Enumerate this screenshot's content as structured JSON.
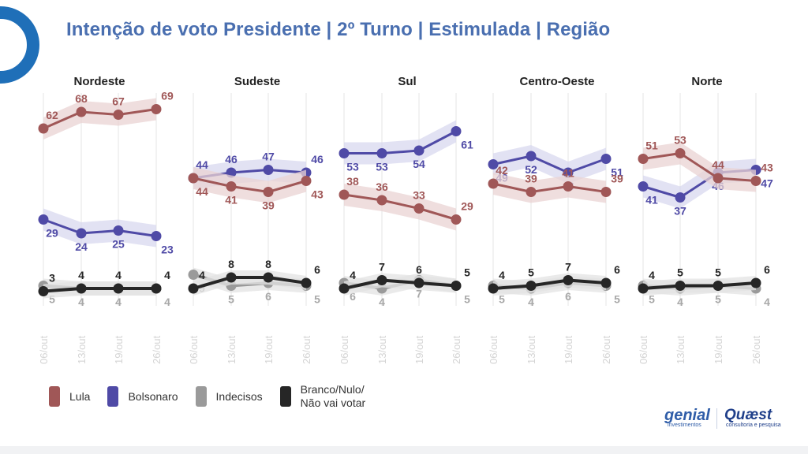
{
  "title": "Intenção de voto Presidente | 2º Turno | Estimulada | Região",
  "colors": {
    "lula": "#a05757",
    "bolsonaro": "#4f4aa6",
    "indecisos": "#9a9a9a",
    "branco": "#262626",
    "lula_band": "#ead3d3",
    "bolsonaro_band": "#d8d8ef",
    "gray_band": "#e3e3e3",
    "title": "#4a6fb0",
    "brand_blue": "#2f5da8"
  },
  "legend": [
    {
      "key": "lula",
      "label": "Lula"
    },
    {
      "key": "bolsonaro",
      "label": "Bolsonaro"
    },
    {
      "key": "indecisos",
      "label": "Indecisos"
    },
    {
      "key": "branco",
      "label": "Branco/Nulo/\nNão vai votar"
    }
  ],
  "branding": {
    "genial": "genial",
    "genial_sub": "investimentos",
    "quaest": "Quæst",
    "quaest_sub": "consultoria e pesquisa"
  },
  "chart_data": [
    {
      "type": "line",
      "title": "Nordeste",
      "dates": [
        "06/out",
        "13/out",
        "19/out",
        "26/out"
      ],
      "series": [
        {
          "name": "Lula",
          "key": "lula",
          "values": [
            62,
            68,
            67,
            69
          ]
        },
        {
          "name": "Bolsonaro",
          "key": "bolsonaro",
          "values": [
            29,
            24,
            25,
            23
          ]
        },
        {
          "name": "Indecisos",
          "key": "indecisos",
          "values": [
            5,
            4,
            4,
            4
          ]
        },
        {
          "name": "Branco/Nulo/Não vai votar",
          "key": "branco",
          "values": [
            3,
            4,
            4,
            4
          ]
        }
      ]
    },
    {
      "type": "line",
      "title": "Sudeste",
      "dates": [
        "06/out",
        "13/out",
        "19/out",
        "26/out"
      ],
      "series": [
        {
          "name": "Lula",
          "key": "lula",
          "values": [
            44,
            41,
            39,
            43
          ]
        },
        {
          "name": "Bolsonaro",
          "key": "bolsonaro",
          "values": [
            44,
            46,
            47,
            46
          ]
        },
        {
          "name": "Indecisos",
          "key": "indecisos",
          "values": [
            9,
            5,
            6,
            5
          ]
        },
        {
          "name": "Branco/Nulo/Não vai votar",
          "key": "branco",
          "values": [
            4,
            8,
            8,
            6
          ]
        }
      ]
    },
    {
      "type": "line",
      "title": "Sul",
      "dates": [
        "06/out",
        "13/out",
        "19/out",
        "26/out"
      ],
      "series": [
        {
          "name": "Lula",
          "key": "lula",
          "values": [
            38,
            36,
            33,
            29
          ]
        },
        {
          "name": "Bolsonaro",
          "key": "bolsonaro",
          "values": [
            53,
            53,
            54,
            61
          ]
        },
        {
          "name": "Indecisos",
          "key": "indecisos",
          "values": [
            6,
            4,
            7,
            5
          ]
        },
        {
          "name": "Branco/Nulo/Não vai votar",
          "key": "branco",
          "values": [
            4,
            7,
            6,
            5
          ]
        }
      ]
    },
    {
      "type": "line",
      "title": "Centro-Oeste",
      "dates": [
        "06/out",
        "13/out",
        "19/out",
        "26/out"
      ],
      "series": [
        {
          "name": "Lula",
          "key": "lula",
          "values": [
            42,
            39,
            41,
            39
          ]
        },
        {
          "name": "Bolsonaro",
          "key": "bolsonaro",
          "values": [
            49,
            52,
            46,
            51
          ]
        },
        {
          "name": "Indecisos",
          "key": "indecisos",
          "values": [
            5,
            4,
            6,
            5
          ]
        },
        {
          "name": "Branco/Nulo/Não vai votar",
          "key": "branco",
          "values": [
            4,
            5,
            7,
            6
          ]
        }
      ]
    },
    {
      "type": "line",
      "title": "Norte",
      "dates": [
        "06/out",
        "13/out",
        "19/out",
        "26/out"
      ],
      "series": [
        {
          "name": "Lula",
          "key": "lula",
          "values": [
            51,
            53,
            44,
            43
          ]
        },
        {
          "name": "Bolsonaro",
          "key": "bolsonaro",
          "values": [
            41,
            37,
            46,
            47
          ]
        },
        {
          "name": "Indecisos",
          "key": "indecisos",
          "values": [
            5,
            4,
            5,
            4
          ]
        },
        {
          "name": "Branco/Nulo/Não vai votar",
          "key": "branco",
          "values": [
            4,
            5,
            5,
            6
          ]
        }
      ]
    }
  ]
}
